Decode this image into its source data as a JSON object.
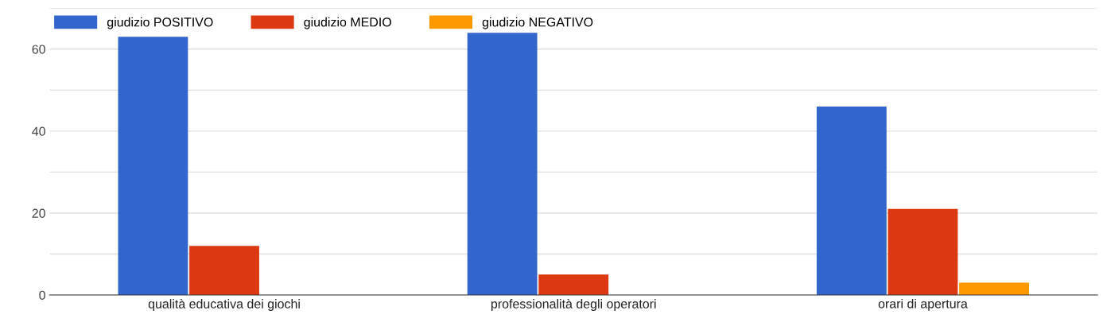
{
  "chart_data": {
    "type": "bar",
    "categories": [
      "qualità educativa dei giochi",
      "professionalità degli operatori",
      "orari di apertura"
    ],
    "series": [
      {
        "name": "giudizio POSITIVO",
        "color": "#3366cc",
        "values": [
          63,
          64,
          46
        ]
      },
      {
        "name": "giudizio MEDIO",
        "color": "#dc3912",
        "values": [
          12,
          5,
          21
        ]
      },
      {
        "name": "giudizio NEGATIVO",
        "color": "#ff9900",
        "values": [
          0,
          0,
          3
        ]
      }
    ],
    "ylim": [
      0,
      70
    ],
    "yticks": [
      0,
      {
        "value": 10,
        "label": null
      },
      20,
      {
        "value": 30,
        "label": null
      },
      40,
      {
        "value": 50,
        "label": null
      },
      60,
      {
        "value": 70,
        "label": null
      }
    ],
    "grid": "y",
    "legend": "top left"
  }
}
